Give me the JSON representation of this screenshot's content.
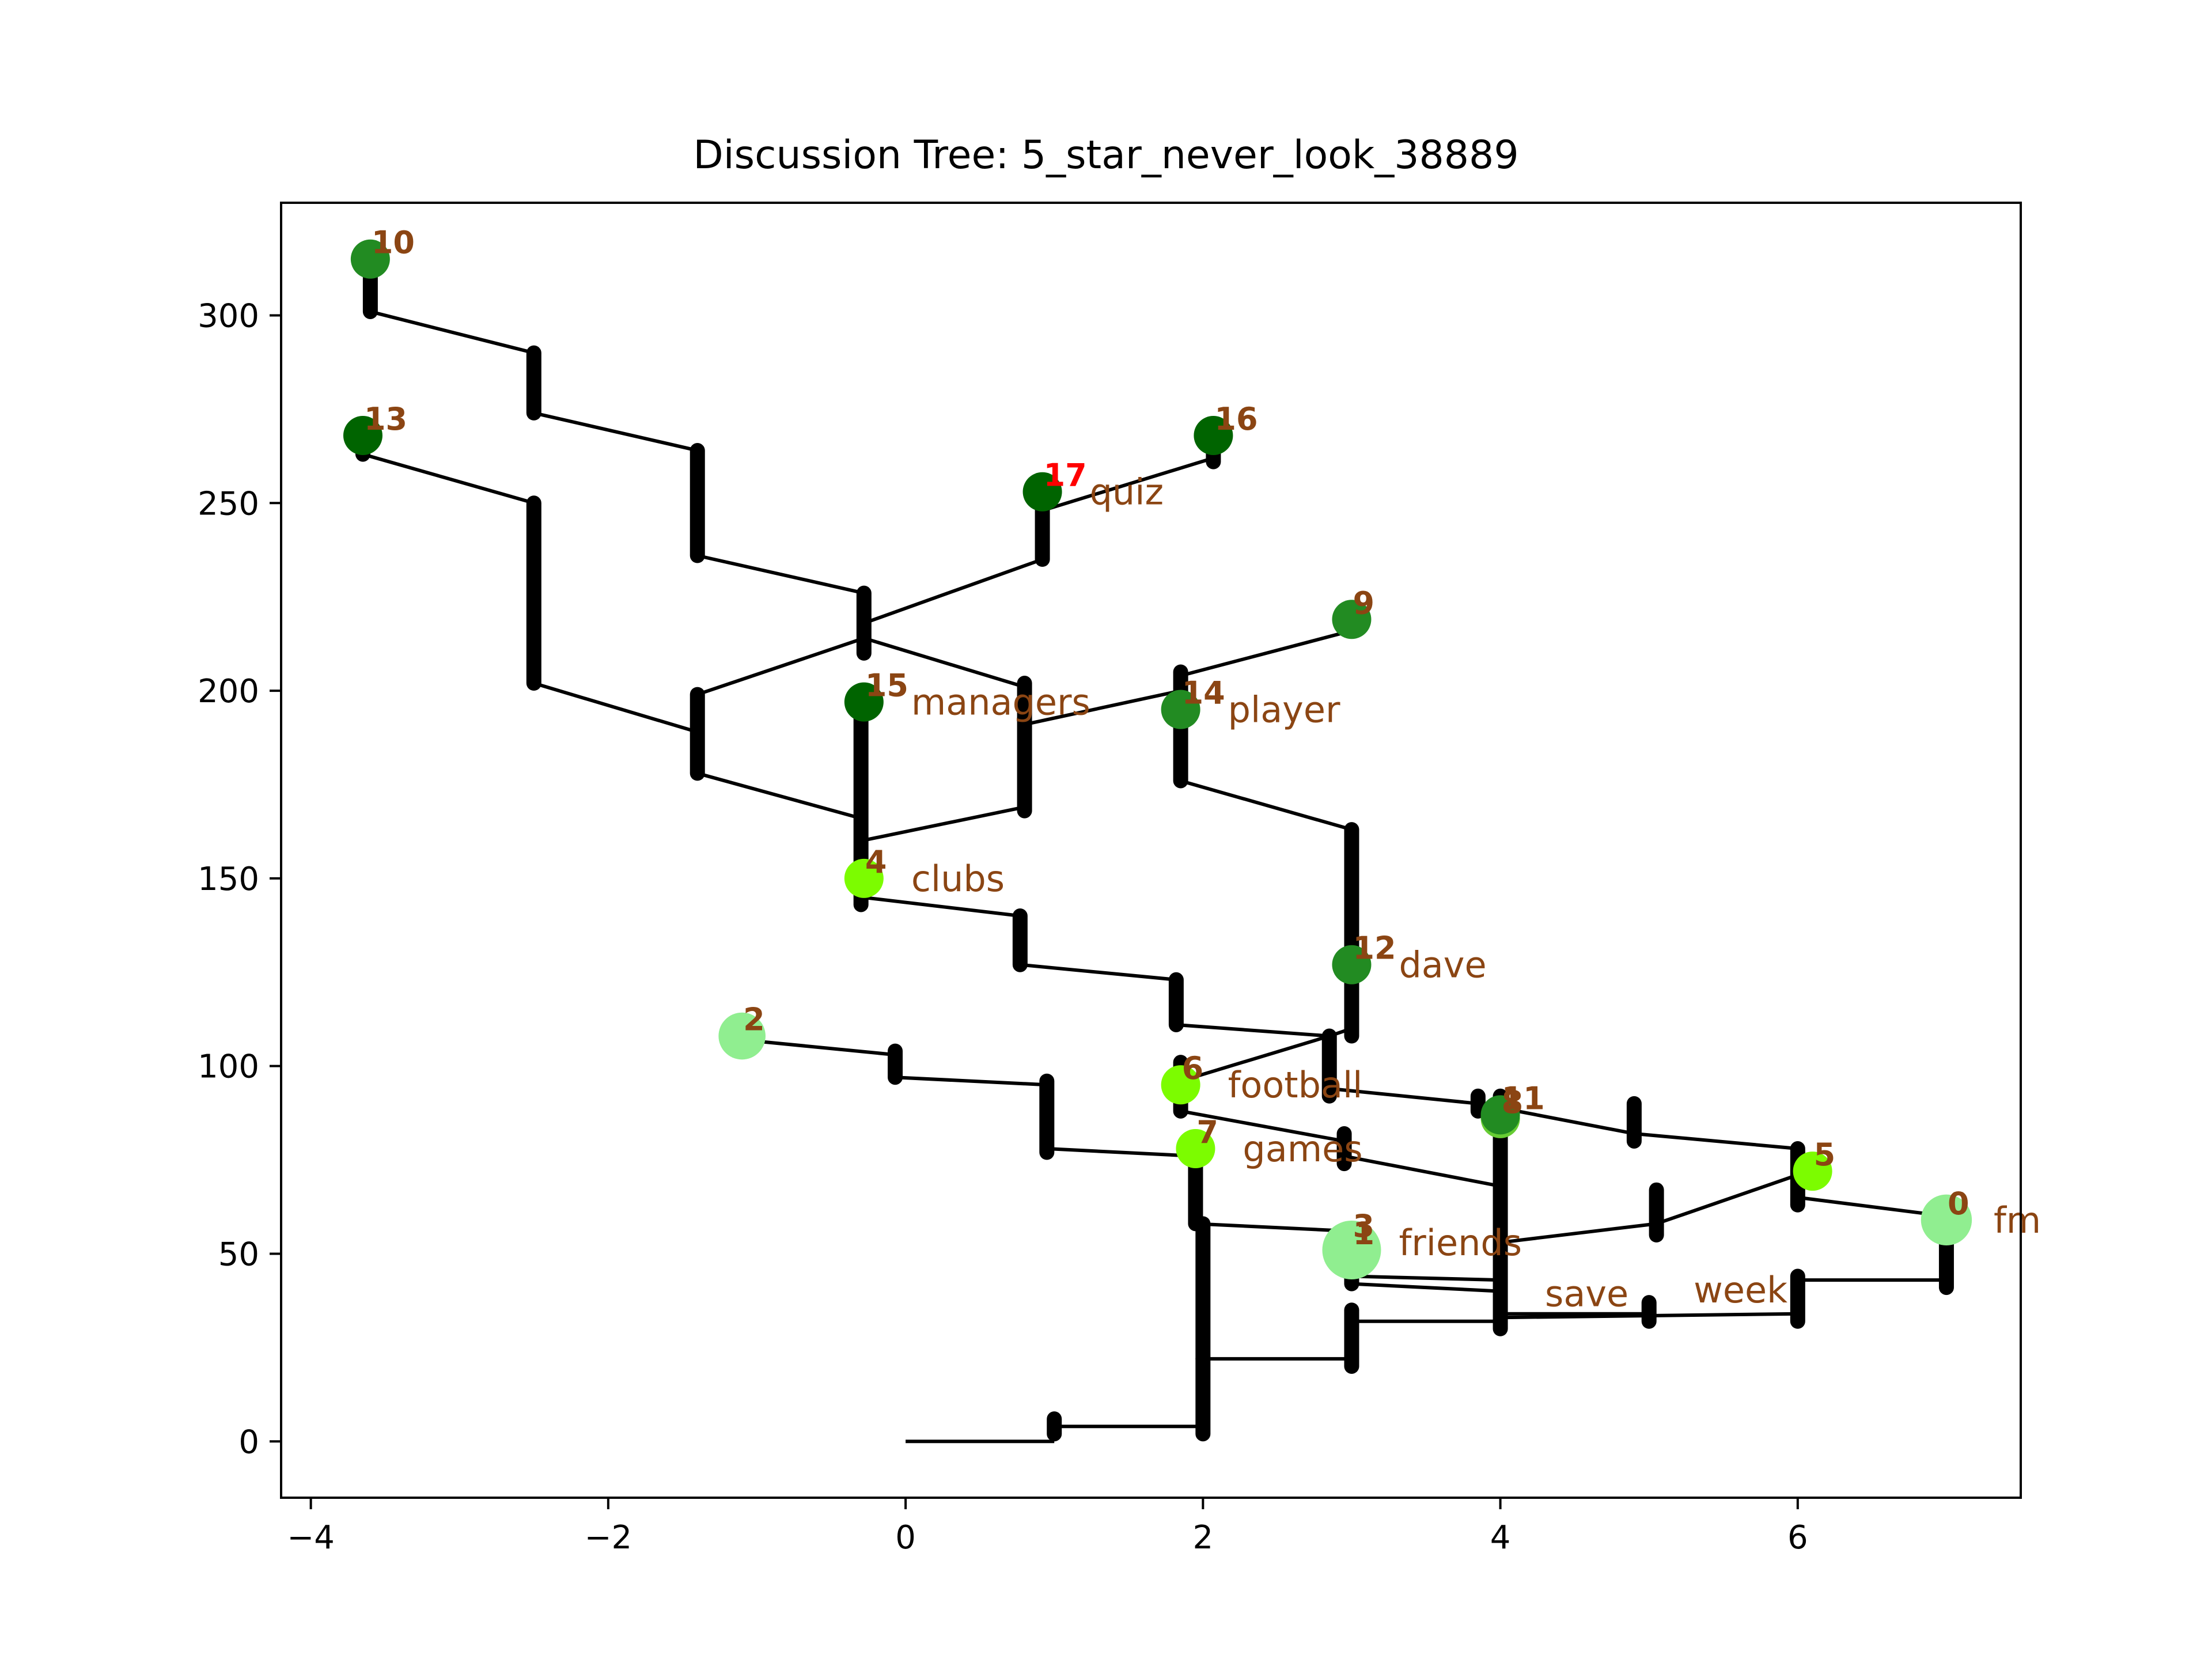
{
  "chart_data": {
    "type": "scatter",
    "title": "Discussion Tree: 5_star_never_look_38889",
    "xlabel": "",
    "ylabel": "",
    "xlim": [
      -4.2,
      7.5
    ],
    "ylim": [
      -15,
      330
    ],
    "xticks": [
      -4,
      -2,
      0,
      2,
      4,
      6
    ],
    "xtick_labels": [
      "−4",
      "−2",
      "0",
      "2",
      "4",
      "6"
    ],
    "yticks": [
      0,
      50,
      100,
      150,
      200,
      250,
      300
    ],
    "ytick_labels": [
      "0",
      "50",
      "100",
      "150",
      "200",
      "250",
      "300"
    ],
    "grid": false,
    "edge_color": "#000000",
    "label_color": "#8b4513",
    "highlight_label_color": "#ff0000",
    "edges": [
      [
        [
          0,
          0
        ],
        [
          1,
          0
        ]
      ],
      [
        [
          1,
          2
        ],
        [
          1,
          6
        ]
      ],
      [
        [
          1,
          4
        ],
        [
          2,
          4
        ]
      ],
      [
        [
          2,
          2
        ],
        [
          2,
          22
        ]
      ],
      [
        [
          2,
          22
        ],
        [
          3,
          22
        ]
      ],
      [
        [
          3,
          20
        ],
        [
          3,
          35
        ]
      ],
      [
        [
          3,
          32
        ],
        [
          4,
          32
        ]
      ],
      [
        [
          4,
          30
        ],
        [
          4,
          92
        ]
      ],
      [
        [
          4,
          34
        ],
        [
          5,
          34
        ]
      ],
      [
        [
          5,
          32
        ],
        [
          5,
          37
        ]
      ],
      [
        [
          4,
          33
        ],
        [
          6,
          34
        ]
      ],
      [
        [
          6,
          32
        ],
        [
          6,
          44
        ]
      ],
      [
        [
          6,
          43
        ],
        [
          7,
          43
        ]
      ],
      [
        [
          7,
          41
        ],
        [
          7,
          60
        ]
      ],
      [
        [
          7,
          60
        ],
        [
          6,
          65
        ]
      ],
      [
        [
          6,
          63
        ],
        [
          6,
          78
        ]
      ],
      [
        [
          6,
          71
        ],
        [
          5.05,
          58
        ]
      ],
      [
        [
          5.05,
          55
        ],
        [
          5.05,
          67
        ]
      ],
      [
        [
          5.05,
          58
        ],
        [
          4,
          53
        ]
      ],
      [
        [
          6,
          78
        ],
        [
          4.9,
          82
        ]
      ],
      [
        [
          4.9,
          80
        ],
        [
          4.9,
          90
        ]
      ],
      [
        [
          4.9,
          82
        ],
        [
          3.85,
          90
        ]
      ],
      [
        [
          3.85,
          88
        ],
        [
          3.85,
          92
        ]
      ],
      [
        [
          3.85,
          90
        ],
        [
          2.85,
          94
        ]
      ],
      [
        [
          2.85,
          92
        ],
        [
          2.85,
          108
        ]
      ],
      [
        [
          2.85,
          108
        ],
        [
          1.85,
          96
        ]
      ],
      [
        [
          1.85,
          88
        ],
        [
          1.85,
          101
        ]
      ],
      [
        [
          1.85,
          88
        ],
        [
          2.95,
          80
        ]
      ],
      [
        [
          2.95,
          74
        ],
        [
          2.95,
          82
        ]
      ],
      [
        [
          2.95,
          76
        ],
        [
          4,
          68
        ]
      ],
      [
        [
          2.85,
          108
        ],
        [
          3,
          110
        ]
      ],
      [
        [
          3,
          108
        ],
        [
          3,
          163
        ]
      ],
      [
        [
          3,
          163
        ],
        [
          1.85,
          176
        ]
      ],
      [
        [
          1.85,
          176
        ],
        [
          1.85,
          205
        ]
      ],
      [
        [
          1.85,
          204
        ],
        [
          3,
          216
        ]
      ],
      [
        [
          1.85,
          200
        ],
        [
          0.8,
          191
        ]
      ],
      [
        [
          0.8,
          168
        ],
        [
          0.8,
          202
        ]
      ],
      [
        [
          0.8,
          169
        ],
        [
          -0.3,
          160
        ]
      ],
      [
        [
          0.8,
          201
        ],
        [
          -0.28,
          214
        ]
      ],
      [
        [
          -0.28,
          210
        ],
        [
          -0.28,
          226
        ]
      ],
      [
        [
          -0.28,
          218
        ],
        [
          0.92,
          235
        ]
      ],
      [
        [
          0.92,
          235
        ],
        [
          0.92,
          253
        ]
      ],
      [
        [
          0.92,
          248
        ],
        [
          2.07,
          262
        ]
      ],
      [
        [
          2.07,
          261
        ],
        [
          2.07,
          268
        ]
      ],
      [
        [
          -0.28,
          226
        ],
        [
          -1.4,
          236
        ]
      ],
      [
        [
          -1.4,
          236
        ],
        [
          -1.4,
          264
        ]
      ],
      [
        [
          -1.4,
          264
        ],
        [
          -2.5,
          274
        ]
      ],
      [
        [
          -2.5,
          274
        ],
        [
          -2.5,
          290
        ]
      ],
      [
        [
          -2.5,
          290
        ],
        [
          -3.6,
          301
        ]
      ],
      [
        [
          -3.6,
          301
        ],
        [
          -3.6,
          315
        ]
      ],
      [
        [
          -0.28,
          214
        ],
        [
          -1.4,
          199
        ]
      ],
      [
        [
          -1.4,
          178
        ],
        [
          -1.4,
          199
        ]
      ],
      [
        [
          -1.4,
          189
        ],
        [
          -2.5,
          202
        ]
      ],
      [
        [
          -2.5,
          202
        ],
        [
          -2.5,
          250
        ]
      ],
      [
        [
          -2.5,
          250
        ],
        [
          -3.65,
          263
        ]
      ],
      [
        [
          -3.65,
          263
        ],
        [
          -3.65,
          268
        ]
      ],
      [
        [
          -1.4,
          178
        ],
        [
          -0.3,
          166
        ]
      ],
      [
        [
          -0.3,
          143
        ],
        [
          -0.3,
          197
        ]
      ],
      [
        [
          -0.3,
          145
        ],
        [
          0.77,
          140
        ]
      ],
      [
        [
          0.77,
          127
        ],
        [
          0.77,
          140
        ]
      ],
      [
        [
          0.77,
          127
        ],
        [
          1.82,
          123
        ]
      ],
      [
        [
          1.82,
          111
        ],
        [
          1.82,
          123
        ]
      ],
      [
        [
          1.82,
          111
        ],
        [
          2.85,
          108
        ]
      ],
      [
        [
          2,
          22
        ],
        [
          2,
          58
        ]
      ],
      [
        [
          2,
          58
        ],
        [
          1.95,
          58
        ]
      ],
      [
        [
          1.95,
          58
        ],
        [
          1.95,
          76
        ]
      ],
      [
        [
          1.95,
          76
        ],
        [
          0.95,
          78
        ]
      ],
      [
        [
          0.95,
          77
        ],
        [
          0.95,
          96
        ]
      ],
      [
        [
          0.95,
          95
        ],
        [
          -0.07,
          97
        ]
      ],
      [
        [
          -0.07,
          97
        ],
        [
          -0.07,
          104
        ]
      ],
      [
        [
          -0.07,
          103
        ],
        [
          -1.1,
          107
        ]
      ],
      [
        [
          1.95,
          58
        ],
        [
          3,
          56
        ]
      ],
      [
        [
          3,
          42
        ],
        [
          3,
          56
        ]
      ],
      [
        [
          3,
          44
        ],
        [
          4,
          43
        ]
      ],
      [
        [
          3,
          42
        ],
        [
          4,
          40
        ]
      ]
    ],
    "nodes": [
      {
        "id": "0",
        "x": 7,
        "y": 59,
        "color": "#90ee90",
        "size": 1.3,
        "word": "fm"
      },
      {
        "id": "1",
        "x": 3,
        "y": 51,
        "color": "#90ee90",
        "size": 1.5,
        "word": ""
      },
      {
        "id": "2",
        "x": -1.1,
        "y": 108,
        "color": "#90ee90",
        "size": 1.2,
        "word": ""
      },
      {
        "id": "3",
        "x": 3,
        "y": 53,
        "color": "#90ee90",
        "size": 1.0,
        "word": "friends"
      },
      {
        "id": "4",
        "x": -0.28,
        "y": 150,
        "color": "#7cfc00",
        "size": 1.0,
        "word": "clubs"
      },
      {
        "id": "5",
        "x": 6.1,
        "y": 72,
        "color": "#7cfc00",
        "size": 1.0,
        "word": ""
      },
      {
        "id": "6",
        "x": 1.85,
        "y": 95,
        "color": "#7cfc00",
        "size": 1.0,
        "word": "football"
      },
      {
        "id": "7",
        "x": 1.95,
        "y": 78,
        "color": "#7cfc00",
        "size": 1.0,
        "word": "games"
      },
      {
        "id": "8",
        "x": 4,
        "y": 86,
        "color": "#66cc33",
        "size": 1.0,
        "word": ""
      },
      {
        "id": "9",
        "x": 3,
        "y": 219,
        "color": "#228b22",
        "size": 1.0,
        "word": ""
      },
      {
        "id": "10",
        "x": -3.6,
        "y": 315,
        "color": "#228b22",
        "size": 1.0,
        "word": ""
      },
      {
        "id": "11",
        "x": 4,
        "y": 87,
        "color": "#228b22",
        "size": 1.0,
        "word": ""
      },
      {
        "id": "12",
        "x": 3,
        "y": 127,
        "color": "#228b22",
        "size": 1.0,
        "word": "dave"
      },
      {
        "id": "13",
        "x": -3.65,
        "y": 268,
        "color": "#006400",
        "size": 1.0,
        "word": ""
      },
      {
        "id": "14",
        "x": 1.85,
        "y": 195,
        "color": "#228b22",
        "size": 1.0,
        "word": "player"
      },
      {
        "id": "15",
        "x": -0.28,
        "y": 197,
        "color": "#006400",
        "size": 1.0,
        "word": "managers"
      },
      {
        "id": "16",
        "x": 2.07,
        "y": 268,
        "color": "#006400",
        "size": 1.0,
        "word": ""
      },
      {
        "id": "17",
        "x": 0.92,
        "y": 253,
        "color": "#006400",
        "size": 1.0,
        "word": "quiz"
      }
    ],
    "free_words": [
      {
        "text": "save",
        "x": 4.3,
        "y": 36
      },
      {
        "text": "week",
        "x": 5.3,
        "y": 37
      }
    ],
    "highlight_node": "17"
  }
}
